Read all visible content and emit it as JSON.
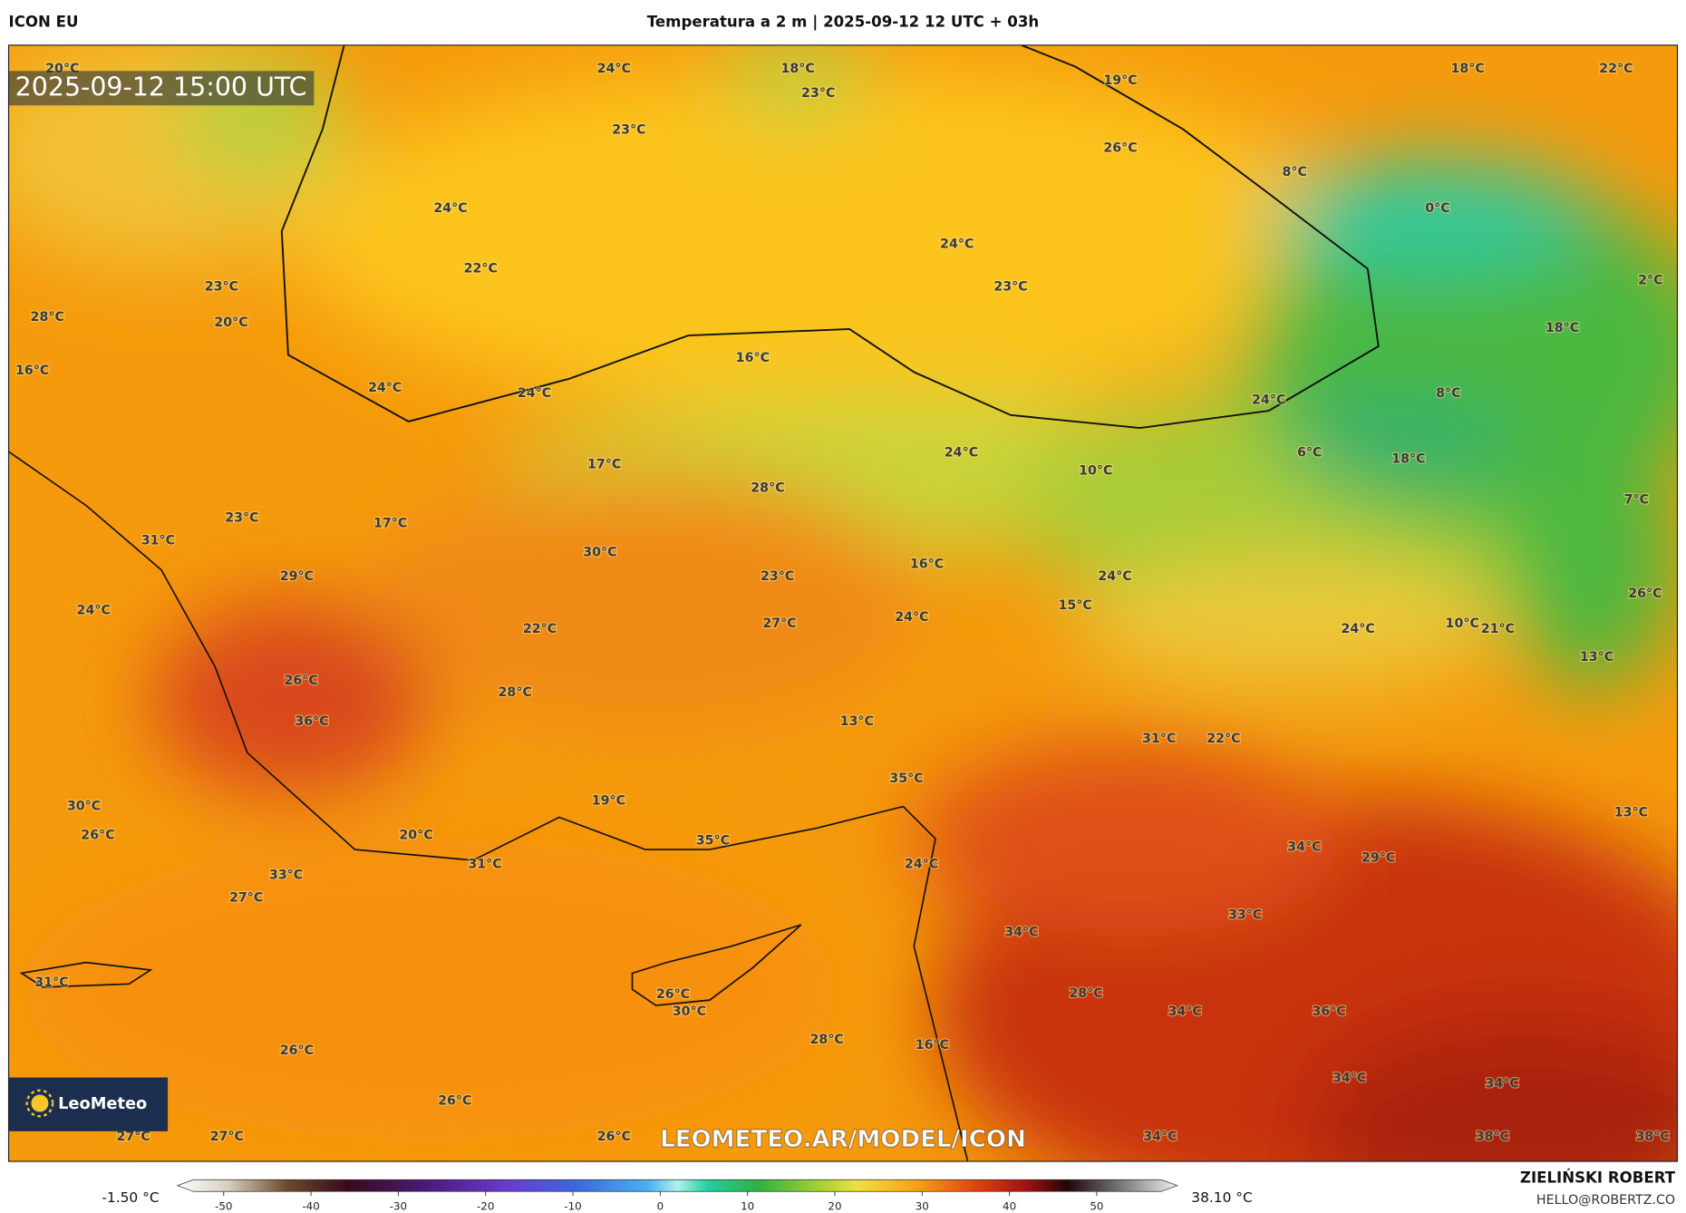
{
  "header": {
    "model": "ICON EU",
    "title": "Temperatura a 2 m | 2025-09-12 12 UTC + 03h"
  },
  "map": {
    "timestamp": "2025-09-12 15:00 UTC",
    "watermark": "LEOMETEO.AR/MODEL/ICON",
    "logo": "LeoMeteo",
    "labels": [
      "24°C",
      "18°C",
      "23°C",
      "19°C",
      "18°C",
      "22°C",
      "20°C",
      "23°C",
      "26°C",
      "8°C",
      "0°C",
      "24°C",
      "22°C",
      "24°C",
      "23°C",
      "23°C",
      "28°C",
      "20°C",
      "2°C",
      "18°C",
      "16°C",
      "24°C",
      "24°C",
      "16°C",
      "8°C",
      "24°C",
      "24°C",
      "17°C",
      "10°C",
      "6°C",
      "18°C",
      "28°C",
      "7°C",
      "23°C",
      "17°C",
      "31°C",
      "30°C",
      "16°C",
      "24°C",
      "23°C",
      "29°C",
      "26°C",
      "15°C",
      "24°C",
      "24°C",
      "27°C",
      "22°C",
      "24°C",
      "10°C",
      "21°C",
      "13°C",
      "26°C",
      "28°C",
      "13°C",
      "36°C",
      "31°C",
      "22°C",
      "35°C",
      "19°C",
      "30°C",
      "26°C",
      "20°C",
      "13°C",
      "35°C",
      "34°C",
      "29°C",
      "24°C",
      "31°C",
      "33°C",
      "27°C",
      "33°C",
      "34°C",
      "31°C",
      "26°C",
      "28°C",
      "30°C",
      "34°C",
      "36°C",
      "28°C",
      "16°C",
      "26°C",
      "34°C",
      "34°C",
      "26°C",
      "27°C",
      "27°C",
      "26°C",
      "34°C",
      "38°C",
      "38°C"
    ]
  },
  "colorbar": {
    "min_label": "-1.50 °C",
    "max_label": "38.10 °C",
    "ticks": [
      -50,
      -40,
      -30,
      -20,
      -10,
      0,
      10,
      20,
      30,
      40,
      50
    ]
  },
  "footer": {
    "author": "ZIELIŃSKI ROBERT",
    "email": "HELLO@ROBERTZ.CO"
  }
}
